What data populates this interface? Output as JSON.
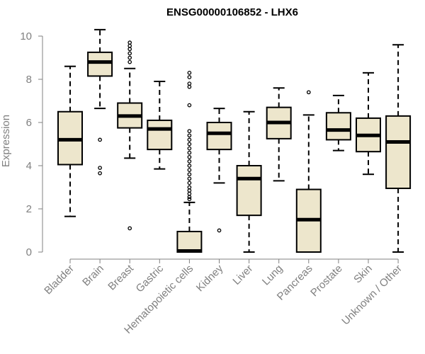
{
  "chart_data": {
    "type": "boxplot",
    "title": "ENSG00000106852 - LHX6",
    "xlabel": "",
    "ylabel": "Expression",
    "ylim": [
      0,
      10
    ],
    "yticks": [
      "0",
      "2",
      "4",
      "6",
      "8",
      "10"
    ],
    "ytick_values": [
      0,
      2,
      4,
      6,
      8,
      10
    ],
    "box_fill": "#ede6cc",
    "axis_color": "#808080",
    "categories": [
      "Bladder",
      "Brain",
      "Breast",
      "Gastric",
      "Hematopoietic cells",
      "Kidney",
      "Liver",
      "Lung",
      "Pancreas",
      "Prostate",
      "Skin",
      "Unknown / Other"
    ],
    "boxes": [
      {
        "name": "Bladder",
        "min": 1.65,
        "q1": 4.05,
        "median": 5.2,
        "q3": 6.5,
        "max": 8.6,
        "outliers": []
      },
      {
        "name": "Brain",
        "min": 6.65,
        "q1": 8.15,
        "median": 8.8,
        "q3": 9.25,
        "max": 10.3,
        "outliers": [
          5.2,
          3.9,
          3.65
        ]
      },
      {
        "name": "Breast",
        "min": 4.35,
        "q1": 5.75,
        "median": 6.3,
        "q3": 6.9,
        "max": 8.5,
        "outliers": [
          9.7,
          9.55,
          9.4,
          9.2,
          9.0,
          8.8,
          1.1
        ]
      },
      {
        "name": "Gastric",
        "min": 3.85,
        "q1": 4.75,
        "median": 5.7,
        "q3": 6.1,
        "max": 7.9,
        "outliers": []
      },
      {
        "name": "Hematopoietic cells",
        "min": 0.0,
        "q1": 0.0,
        "median": 0.05,
        "q3": 0.95,
        "max": 2.3,
        "outliers": [
          8.3,
          8.1,
          7.8,
          7.65,
          6.8,
          5.6,
          5.4,
          5.2,
          5.0,
          4.8,
          4.6,
          4.4,
          4.2,
          4.0,
          3.8,
          3.6,
          3.4,
          3.2,
          3.0,
          2.85,
          2.7,
          2.55,
          2.45
        ]
      },
      {
        "name": "Kidney",
        "min": 3.2,
        "q1": 4.75,
        "median": 5.5,
        "q3": 6.0,
        "max": 6.65,
        "outliers": [
          1.0
        ]
      },
      {
        "name": "Liver",
        "min": 0.0,
        "q1": 1.7,
        "median": 3.4,
        "q3": 4.0,
        "max": 6.5,
        "outliers": []
      },
      {
        "name": "Lung",
        "min": 3.3,
        "q1": 5.25,
        "median": 6.0,
        "q3": 6.7,
        "max": 7.6,
        "outliers": []
      },
      {
        "name": "Pancreas",
        "min": 0.0,
        "q1": 0.0,
        "median": 1.5,
        "q3": 2.9,
        "max": 6.35,
        "outliers": [
          7.4
        ]
      },
      {
        "name": "Prostate",
        "min": 4.7,
        "q1": 5.2,
        "median": 5.65,
        "q3": 6.45,
        "max": 7.25,
        "outliers": []
      },
      {
        "name": "Skin",
        "min": 3.6,
        "q1": 4.65,
        "median": 5.4,
        "q3": 6.2,
        "max": 8.3,
        "outliers": []
      },
      {
        "name": "Unknown / Other",
        "min": 0.0,
        "q1": 2.95,
        "median": 5.1,
        "q3": 6.3,
        "max": 9.6,
        "outliers": []
      }
    ]
  }
}
